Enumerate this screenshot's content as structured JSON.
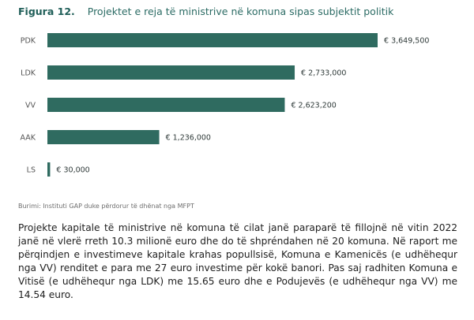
{
  "figure": {
    "number": "Figura 12.",
    "title": "Projektet e reja të ministrive në komuna sipas subjektit politik"
  },
  "chart_data": {
    "type": "bar",
    "orientation": "horizontal",
    "categories": [
      "PDK",
      "LDK",
      "VV",
      "AAK",
      "LS"
    ],
    "values": [
      3649500,
      2733000,
      2623200,
      1236000,
      30000
    ],
    "value_labels": [
      "€ 3,649,500",
      "€ 2,733,000",
      "€ 2,623,200",
      "€ 1,236,000",
      "€ 30,000"
    ],
    "bar_color": "#2f6b60",
    "xlim": [
      0,
      3649500
    ],
    "grid": false,
    "legend": "none"
  },
  "source": "Burimi: Instituti GAP duke përdorur të dhënat nga MFPT",
  "paragraph": "Projekte kapitale të ministrive në komuna të cilat janë paraparë të fillojnë në vitin 2022 janë në vlerë rreth 10.3 milionë euro dhe do të shpréndahen në 20 komuna. Në raport me përqindjen e investimeve kapitale krahas popullsisë, Komuna e Kamenicës (e udhëhequr nga VV) renditet e para me 27 euro investime për kokë banori. Pas saj radhiten Komuna e Vitisë (e udhëhequr nga LDK) me 15.65 euro dhe e Podujevës (e udhëhequr nga VV) me 14.54 euro."
}
